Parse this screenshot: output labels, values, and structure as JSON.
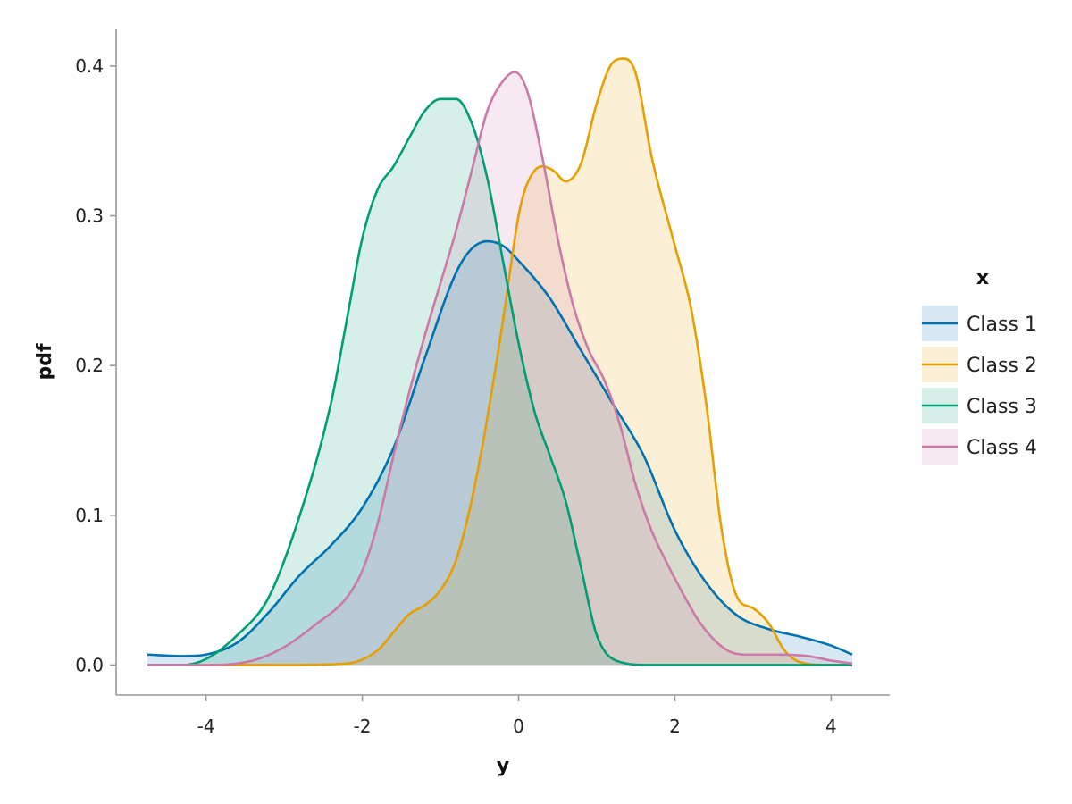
{
  "chart_data": {
    "type": "area",
    "title": "",
    "xlabel": "y",
    "ylabel": "pdf",
    "xlim": [
      -5.15,
      4.75
    ],
    "ylim": [
      -0.02,
      0.425
    ],
    "x_ticks": [
      -4,
      -2,
      0,
      2,
      4
    ],
    "x_tick_labels": [
      "-4",
      "-2",
      "0",
      "2",
      "4"
    ],
    "y_ticks": [
      0.0,
      0.1,
      0.2,
      0.3,
      0.4
    ],
    "y_tick_labels": [
      "0.0",
      "0.1",
      "0.2",
      "0.3",
      "0.4"
    ],
    "grid": false,
    "legend": {
      "title": "x",
      "placement": "right"
    },
    "series": [
      {
        "name": "Class 1",
        "color": "#0072B2",
        "x": [
          -4.75,
          -4.3,
          -4.0,
          -3.6,
          -3.2,
          -2.8,
          -2.4,
          -2.0,
          -1.6,
          -1.2,
          -0.8,
          -0.6,
          -0.4,
          -0.2,
          0.0,
          0.4,
          0.8,
          1.2,
          1.6,
          2.0,
          2.4,
          2.8,
          3.2,
          3.6,
          4.0,
          4.27
        ],
        "y": [
          0.007,
          0.006,
          0.007,
          0.015,
          0.035,
          0.06,
          0.08,
          0.105,
          0.145,
          0.205,
          0.262,
          0.278,
          0.283,
          0.28,
          0.27,
          0.245,
          0.21,
          0.175,
          0.14,
          0.09,
          0.055,
          0.033,
          0.024,
          0.019,
          0.013,
          0.007
        ]
      },
      {
        "name": "Class 2",
        "color": "#E69F00",
        "x": [
          -4.75,
          -3.0,
          -2.2,
          -1.8,
          -1.6,
          -1.4,
          -1.2,
          -1.0,
          -0.8,
          -0.6,
          -0.4,
          -0.2,
          0.0,
          0.1,
          0.3,
          0.45,
          0.6,
          0.8,
          1.0,
          1.2,
          1.35,
          1.5,
          1.7,
          2.0,
          2.2,
          2.4,
          2.6,
          2.8,
          3.0,
          3.2,
          3.4,
          3.6,
          4.0,
          4.27
        ],
        "y": [
          0.0,
          0.0,
          0.001,
          0.01,
          0.022,
          0.034,
          0.04,
          0.05,
          0.07,
          0.11,
          0.165,
          0.23,
          0.3,
          0.32,
          0.333,
          0.33,
          0.323,
          0.335,
          0.375,
          0.402,
          0.405,
          0.395,
          0.34,
          0.28,
          0.24,
          0.175,
          0.09,
          0.045,
          0.038,
          0.028,
          0.01,
          0.002,
          0.0,
          0.0
        ]
      },
      {
        "name": "Class 3",
        "color": "#009E73",
        "x": [
          -4.75,
          -4.3,
          -4.0,
          -3.6,
          -3.2,
          -2.8,
          -2.4,
          -2.2,
          -2.0,
          -1.8,
          -1.6,
          -1.4,
          -1.2,
          -1.0,
          -0.8,
          -0.6,
          -0.4,
          -0.2,
          0.0,
          0.2,
          0.4,
          0.6,
          0.8,
          1.0,
          1.3,
          1.7,
          2.5,
          4.27
        ],
        "y": [
          0.0,
          0.0,
          0.004,
          0.02,
          0.045,
          0.1,
          0.175,
          0.23,
          0.285,
          0.318,
          0.333,
          0.352,
          0.37,
          0.378,
          0.378,
          0.362,
          0.325,
          0.27,
          0.215,
          0.17,
          0.14,
          0.11,
          0.065,
          0.02,
          0.002,
          0.0,
          0.0,
          0.0
        ]
      },
      {
        "name": "Class 4",
        "color": "#CC79A7",
        "x": [
          -4.75,
          -4.0,
          -3.4,
          -3.0,
          -2.6,
          -2.2,
          -2.0,
          -1.8,
          -1.6,
          -1.4,
          -1.2,
          -1.0,
          -0.8,
          -0.6,
          -0.4,
          -0.2,
          -0.05,
          0.1,
          0.3,
          0.5,
          0.7,
          0.9,
          1.1,
          1.3,
          1.5,
          1.7,
          1.9,
          2.1,
          2.3,
          2.5,
          2.7,
          2.9,
          3.3,
          3.7,
          4.0,
          4.27
        ],
        "y": [
          0.0,
          0.0,
          0.003,
          0.012,
          0.027,
          0.045,
          0.063,
          0.095,
          0.14,
          0.182,
          0.22,
          0.255,
          0.29,
          0.33,
          0.37,
          0.39,
          0.396,
          0.385,
          0.34,
          0.285,
          0.24,
          0.21,
          0.19,
          0.16,
          0.12,
          0.09,
          0.068,
          0.048,
          0.03,
          0.017,
          0.009,
          0.007,
          0.007,
          0.006,
          0.003,
          0.001
        ]
      }
    ]
  }
}
